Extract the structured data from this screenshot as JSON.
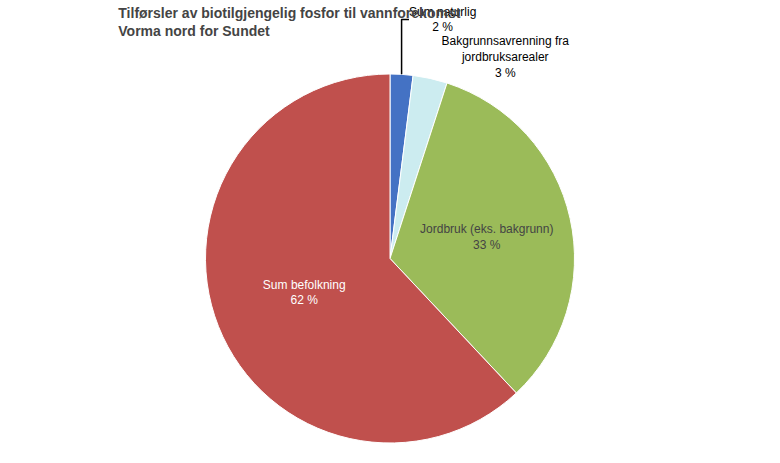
{
  "chart_data": {
    "type": "pie",
    "title": "Tilførsler av biotilgjengelig fosfor til vannforekomst\nVorma nord for Sundet",
    "categories": [
      "Sum naturlig",
      "Bakgrunnsavrenning fra\njordbruksarealer",
      "Jordbruk (eks. bakgrunn)",
      "Sum befolkning"
    ],
    "values": [
      2,
      3,
      33,
      62
    ],
    "value_labels": [
      "2 %",
      "3 %",
      "33 %",
      "62 %"
    ],
    "colors": [
      "#4472C4",
      "#CCECF0",
      "#9BBB59",
      "#C0504D"
    ],
    "data_labels": true
  }
}
